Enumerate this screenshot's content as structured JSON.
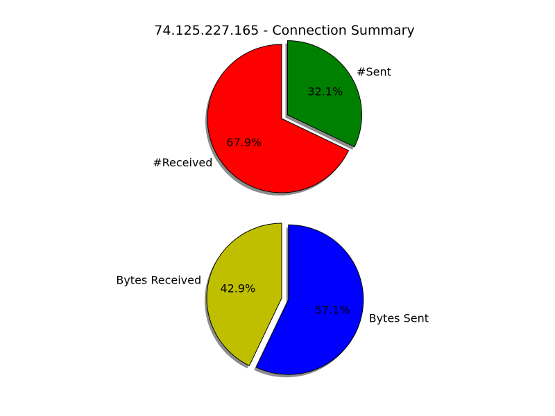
{
  "title": "74.125.227.165 - Connection Summary",
  "chart_data": [
    {
      "type": "pie",
      "title": "74.125.227.165 - Connection Summary",
      "labels": [
        "#Sent",
        "#Received"
      ],
      "values": [
        32.1,
        67.9
      ],
      "pct_labels": [
        "32.1%",
        "67.9%"
      ],
      "colors": [
        "#008000",
        "#ff0000"
      ],
      "explode": [
        true,
        false
      ],
      "shadow": true,
      "start_angle_deg": 90,
      "direction": "clockwise"
    },
    {
      "type": "pie",
      "labels": [
        "Bytes Sent",
        "Bytes Received"
      ],
      "values": [
        57.1,
        42.9
      ],
      "pct_labels": [
        "57.1%",
        "42.9%"
      ],
      "colors": [
        "#0000ff",
        "#bfbf00"
      ],
      "explode": [
        true,
        false
      ],
      "shadow": true,
      "start_angle_deg": 90,
      "direction": "clockwise"
    }
  ]
}
